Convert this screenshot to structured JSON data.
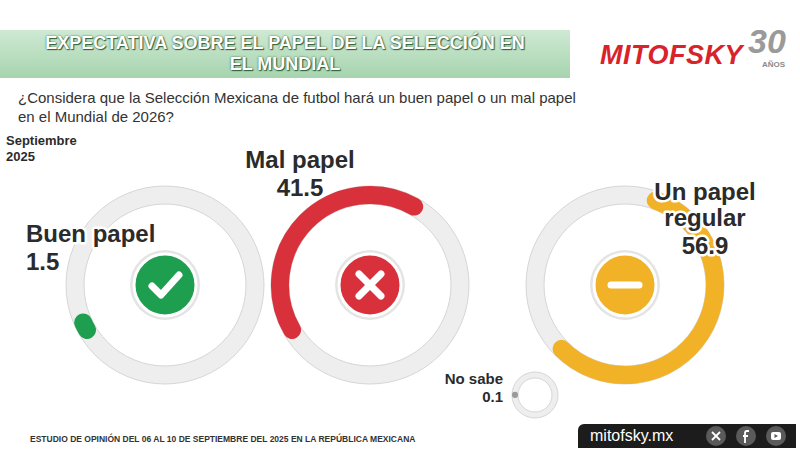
{
  "header": {
    "title": "EXPECTATIVA SOBRE EL PAPEL DE LA SELECCIÓN EN EL MUNDIAL",
    "brand": "MITOFSKY",
    "anniversary": "30",
    "anniversary_label": "AÑOS"
  },
  "question": "¿Considera que la Selección Mexicana de futbol hará un buen papel o un mal papel en el Mundial de 2026?",
  "chart_data": {
    "type": "donut",
    "subtitle": "Septiembre 2025",
    "categories": [
      "Buen papel",
      "Mal papel",
      "Un papel regular",
      "No sabe"
    ],
    "values": [
      1.5,
      41.5,
      56.9,
      0.1
    ],
    "colors": [
      "#1e9e4f",
      "#d9313b",
      "#f2b227",
      "#9a9a9a"
    ],
    "ylim": [
      0,
      100
    ],
    "data_labels": true,
    "tick_labels": false
  },
  "footer": {
    "source": "ESTUDIO DE OPINIÓN DEL 06 AL 10 DE SEPTIEMBRE DEL 2025 EN LA REPÚBLICA MEXICANA",
    "website": "mitofsky.mx"
  }
}
